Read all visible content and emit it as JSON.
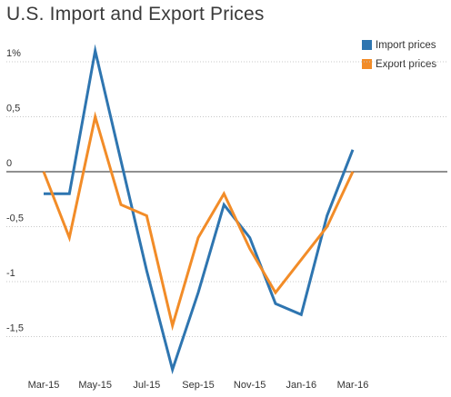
{
  "chart_data": {
    "type": "line",
    "title": "U.S. Import and Export Prices",
    "x": [
      "Mar-15",
      "Apr-15",
      "May-15",
      "Jun-15",
      "Jul-15",
      "Aug-15",
      "Sep-15",
      "Oct-15",
      "Nov-15",
      "Dec-15",
      "Jan-16",
      "Feb-16",
      "Mar-16"
    ],
    "x_tick_labels": [
      "Mar-15",
      "May-15",
      "Jul-15",
      "Sep-15",
      "Nov-15",
      "Jan-16",
      "Mar-16"
    ],
    "y_tick_labels": [
      "1%",
      "0,5",
      "0",
      "-0,5",
      "-1",
      "-1,5"
    ],
    "y_ticks": [
      1,
      0.5,
      0,
      -0.5,
      -1,
      -1.5
    ],
    "ylim": [
      -1.8,
      1.2
    ],
    "grid": "horizontal dotted",
    "legend_position": "top-right",
    "series": [
      {
        "name": "Import prices",
        "color": "#2e75b0",
        "values": [
          -0.2,
          -0.2,
          1.1,
          0.1,
          -0.9,
          -1.8,
          -1.1,
          -0.3,
          -0.6,
          -1.2,
          -1.3,
          -0.4,
          0.2
        ]
      },
      {
        "name": "Export prices",
        "color": "#f28c28",
        "values": [
          0,
          -0.6,
          0.5,
          -0.3,
          -0.4,
          -1.4,
          -0.6,
          -0.2,
          -0.7,
          -1.1,
          -0.8,
          -0.5,
          0
        ]
      }
    ]
  }
}
